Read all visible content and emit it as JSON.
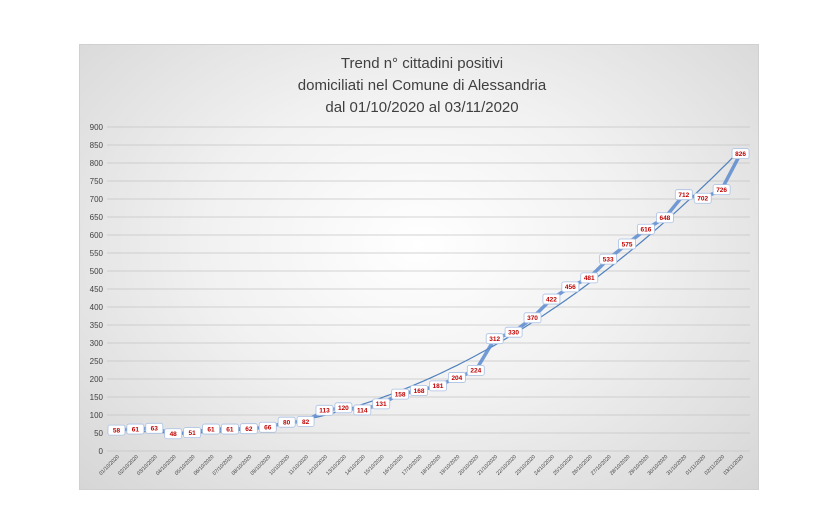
{
  "chart_data": {
    "type": "line",
    "title_lines": [
      "Trend n° cittadini positivi",
      "domiciliati nel Comune di Alessandria",
      "dal 01/10/2020 al 03/11/2020"
    ],
    "xlabel": "",
    "ylabel": "",
    "ylim": [
      0,
      900
    ],
    "yticks": [
      0,
      50,
      100,
      150,
      200,
      250,
      300,
      350,
      400,
      450,
      500,
      550,
      600,
      650,
      700,
      750,
      800,
      850,
      900
    ],
    "grid": true,
    "legend": "none",
    "categories": [
      "01/10/2020",
      "02/10/2020",
      "03/10/2020",
      "04/10/2020",
      "05/10/2020",
      "06/10/2020",
      "07/10/2020",
      "08/10/2020",
      "09/10/2020",
      "10/10/2020",
      "11/10/2020",
      "12/10/2020",
      "13/10/2020",
      "14/10/2020",
      "15/10/2020",
      "16/10/2020",
      "17/10/2020",
      "18/10/2020",
      "19/10/2020",
      "20/10/2020",
      "21/10/2020",
      "22/10/2020",
      "23/10/2020",
      "24/10/2020",
      "25/10/2020",
      "26/10/2020",
      "27/10/2020",
      "28/10/2020",
      "29/10/2020",
      "30/10/2020",
      "31/10/2020",
      "01/11/2020",
      "02/11/2020",
      "03/11/2020"
    ],
    "series": [
      {
        "values": [
          58,
          61,
          63,
          48,
          51,
          61,
          61,
          62,
          66,
          80,
          82,
          113,
          120,
          114,
          131,
          158,
          168,
          181,
          204,
          224,
          312,
          330,
          370,
          422,
          456,
          481,
          533,
          575,
          616,
          648,
          712,
          702,
          726,
          826
        ],
        "data_labels": [
          "58",
          "61",
          "63",
          "48",
          "51",
          "61",
          "61",
          "62",
          "66",
          "80",
          "82",
          "113",
          "120",
          "114",
          "131",
          "158",
          "168",
          "181",
          "204",
          "224",
          "312",
          "330",
          "370",
          "422",
          "456",
          "481",
          "533",
          "575",
          "616",
          "648",
          "712",
          "702",
          "726",
          "826"
        ],
        "color": "#5b8bd0",
        "label_color": "#c00000"
      }
    ],
    "trendline": {
      "type": "polynomial",
      "color": "#4f81bd"
    }
  }
}
